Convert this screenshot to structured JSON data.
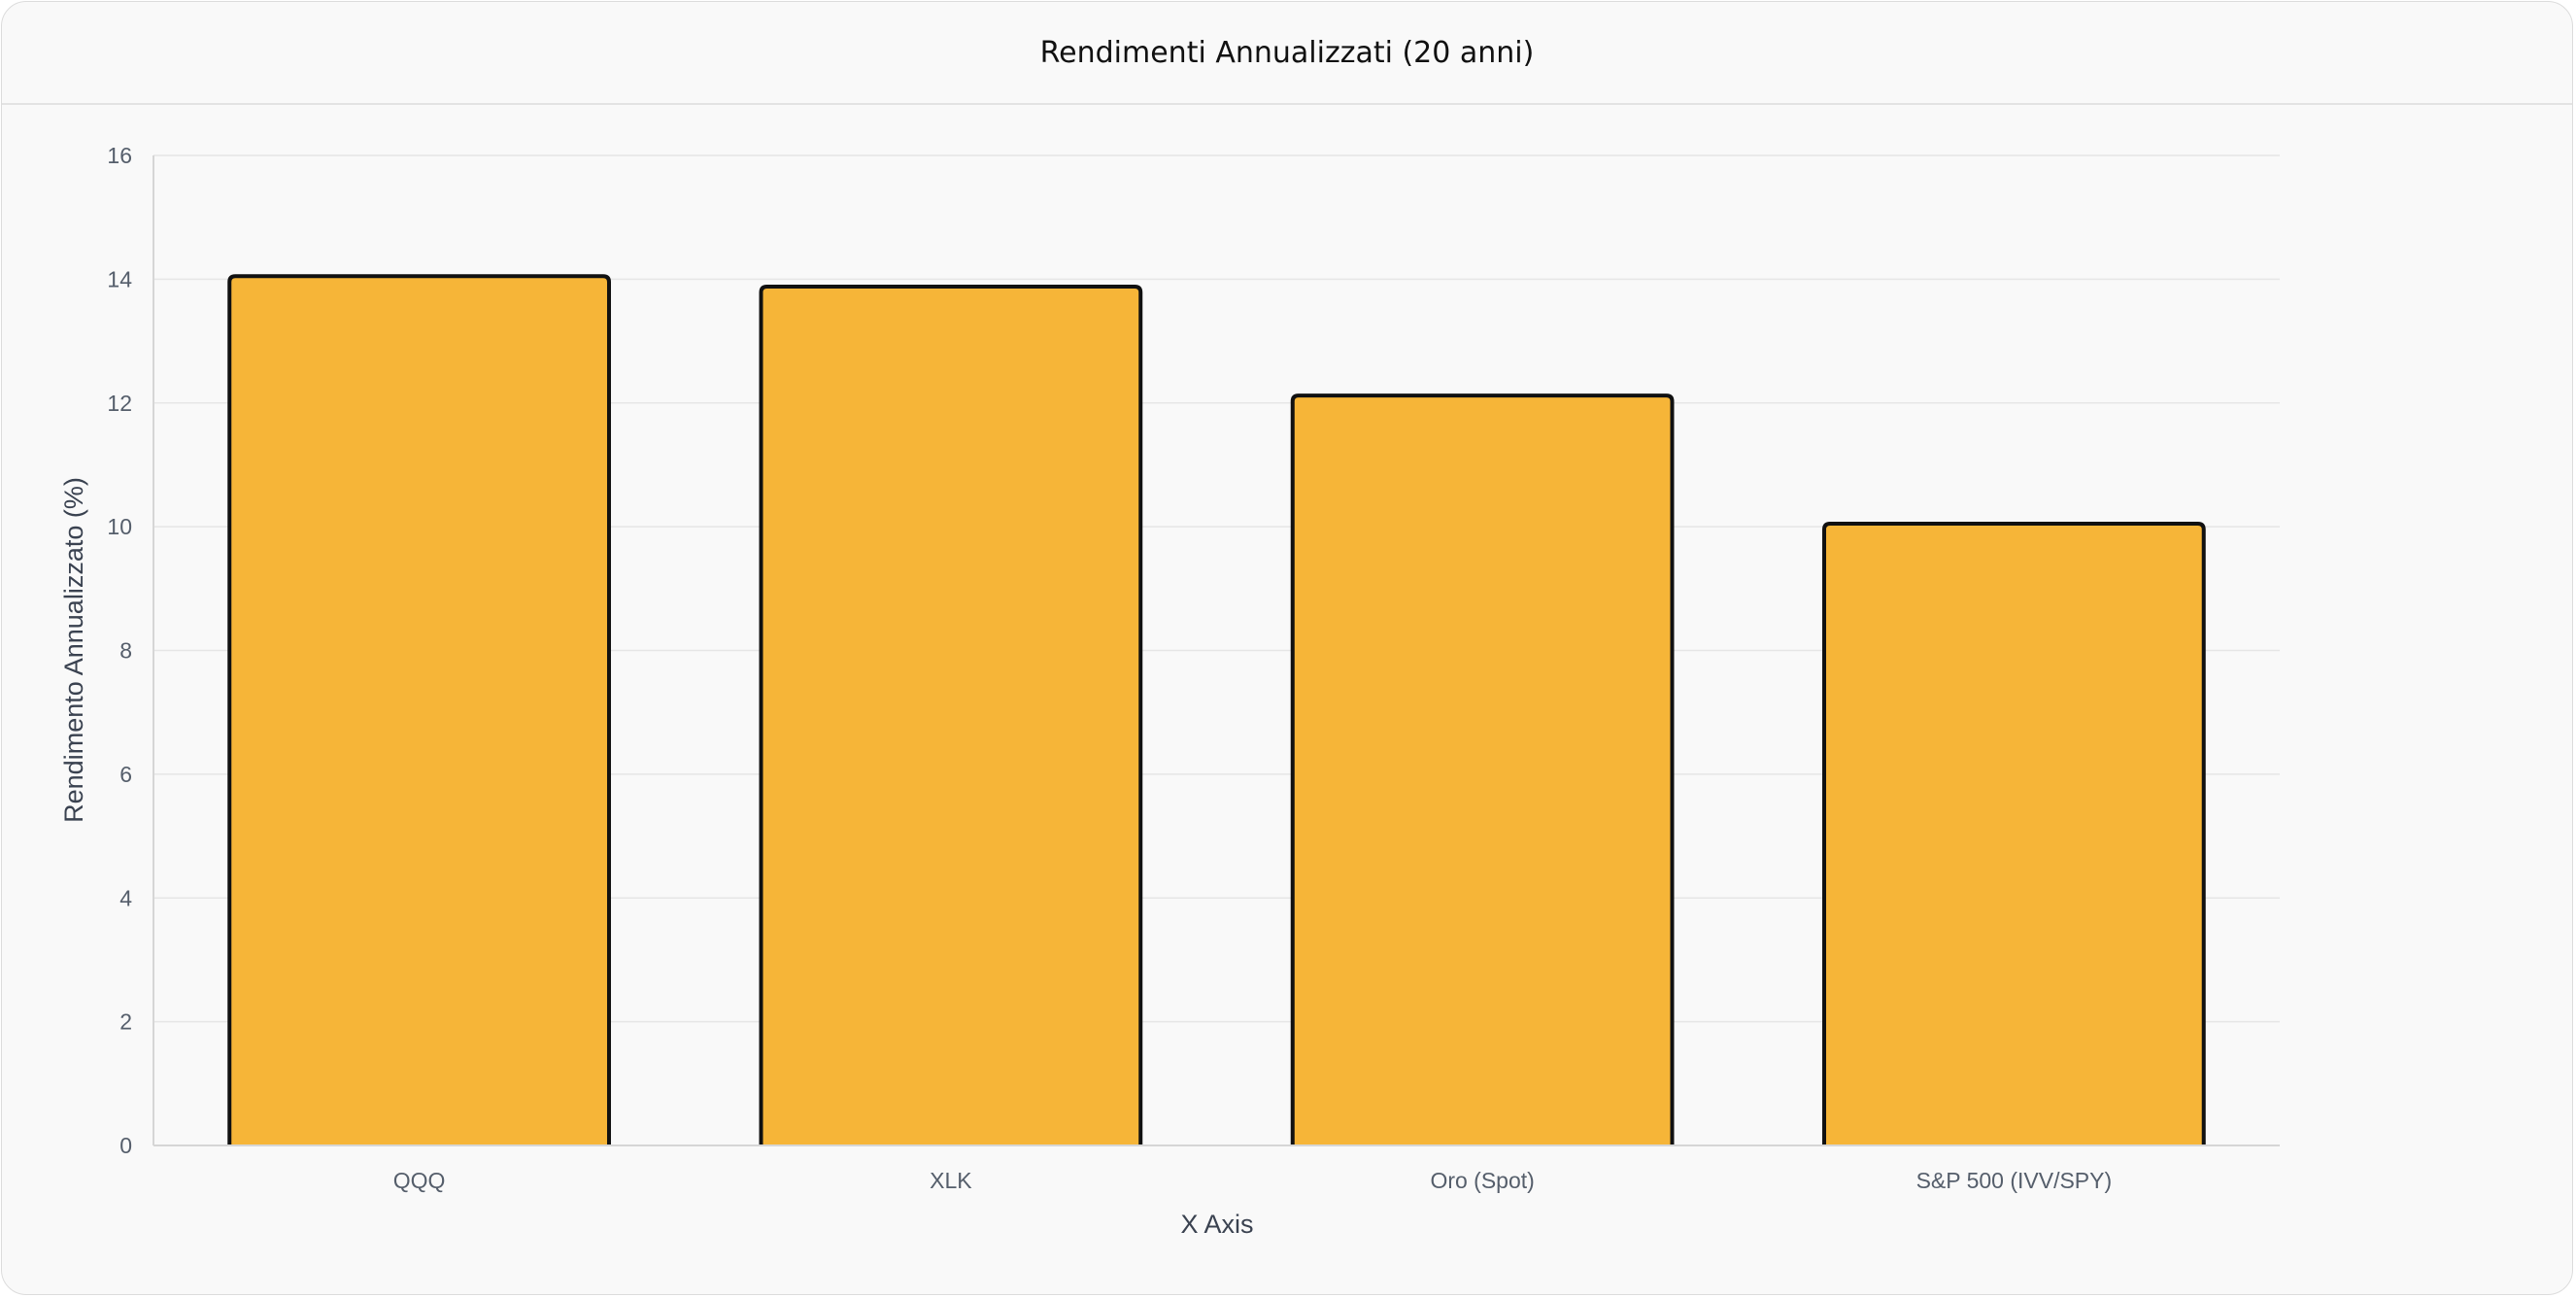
{
  "chart_data": {
    "type": "bar",
    "title": "Rendimenti Annualizzati (20 anni)",
    "xlabel": "X Axis",
    "ylabel": "Rendimento Annualizzato (%)",
    "categories": [
      "QQQ",
      "XLK",
      "Oro (Spot)",
      "S&P 500 (IVV/SPY)"
    ],
    "values": [
      14.05,
      13.88,
      12.12,
      10.05
    ],
    "ylim": [
      0,
      16
    ],
    "yticks": [
      "0",
      "2",
      "4",
      "6",
      "8",
      "10",
      "12",
      "14",
      "16"
    ],
    "grid": true,
    "bar_color": "#f6b538",
    "bar_border_color": "#111111"
  }
}
